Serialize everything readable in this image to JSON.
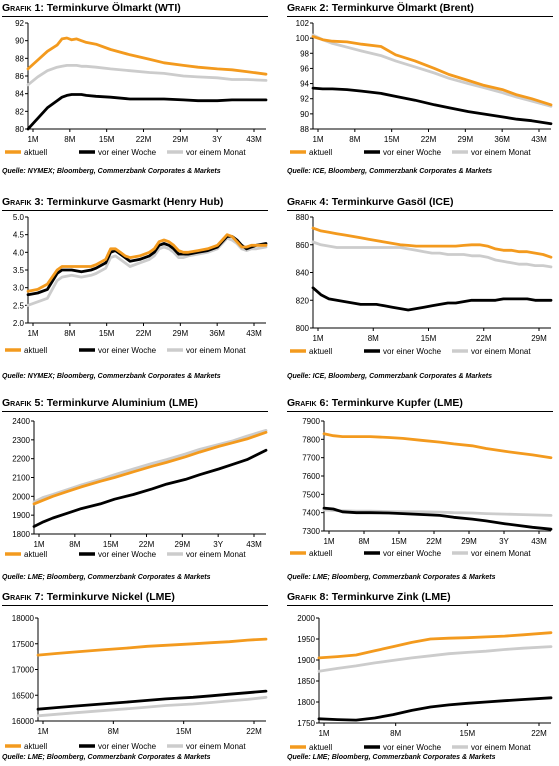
{
  "colors": {
    "aktuell": "#F39A1E",
    "woche": "#000000",
    "monat": "#CCCCCC",
    "axis": "#000000"
  },
  "charts": [
    {
      "prefix": "Grafik",
      "number": "1:",
      "title": "Terminkurve Ölmarkt (WTI)",
      "source": "Quelle: NYMEX; Bloomberg, Commerzbank Corporates & Markets"
    },
    {
      "prefix": "Grafik",
      "number": "2:",
      "title": "Terminkurve Ölmarkt (Brent)",
      "source": "Quelle: ICE, Bloomberg, Commerzbank Corporates & Markets"
    },
    {
      "prefix": "Grafik",
      "number": "3:",
      "title": "Terminkurve Gasmarkt (Henry Hub)",
      "source": "Quelle: NYMEX; Bloomberg, Commerzbank Corporates & Markets"
    },
    {
      "prefix": "Grafik",
      "number": "4:",
      "title": "Terminkurve Gasöl (ICE)",
      "source": "Quelle: ICE, Bloomberg, Commerzbank Corporates & Markets"
    },
    {
      "prefix": "Grafik",
      "number": "5:",
      "title": "Terminkurve Aluminium (LME)",
      "source": "Quelle: LME; Bloomberg, Commerzbank Corporates & Markets"
    },
    {
      "prefix": "Grafik",
      "number": "6:",
      "title": "Terminkurve Kupfer (LME)",
      "source": "Quelle: LME; Bloomberg, Commerzbank Corporates & Markets"
    },
    {
      "prefix": "Grafik",
      "number": "7:",
      "title": "Terminkurve Nickel (LME)",
      "source": "Quelle: LME; Bloomberg, Commerzbank Corporates & Markets"
    },
    {
      "prefix": "Grafik",
      "number": "8:",
      "title": "Terminkurve Zink (LME)",
      "source": "Quelle: LME; Bloomberg, Commerzbank Corporates & Markets"
    }
  ],
  "chart_data": [
    {
      "type": "line",
      "title": "Terminkurve Ölmarkt (WTI)",
      "ylim": [
        80,
        92
      ],
      "yticks": [
        80,
        82,
        84,
        86,
        88,
        90,
        92
      ],
      "categories": [
        "1M",
        "8M",
        "15M",
        "22M",
        "29M",
        "3Y",
        "43M"
      ],
      "xlim": [
        1,
        50
      ],
      "x": [
        1,
        3,
        5,
        7,
        8,
        9,
        10,
        11,
        12,
        13,
        15,
        18,
        22,
        26,
        29,
        33,
        36,
        40,
        43,
        46,
        50
      ],
      "legend": [
        "aktuell",
        "vor einer Woche",
        "vor einem Monat"
      ],
      "series": [
        {
          "name": "aktuell",
          "values": [
            86.8,
            87.8,
            88.8,
            89.5,
            90.2,
            90.3,
            90.1,
            90.2,
            90.0,
            89.8,
            89.6,
            89.0,
            88.4,
            87.9,
            87.5,
            87.2,
            87.0,
            86.8,
            86.7,
            86.5,
            86.2
          ]
        },
        {
          "name": "vor einer Woche",
          "values": [
            80.0,
            81.2,
            82.4,
            83.2,
            83.6,
            83.8,
            83.9,
            83.9,
            83.9,
            83.8,
            83.7,
            83.6,
            83.4,
            83.4,
            83.4,
            83.3,
            83.2,
            83.2,
            83.3,
            83.3,
            83.3
          ]
        },
        {
          "name": "vor einem Monat",
          "values": [
            85.0,
            85.9,
            86.6,
            87.0,
            87.1,
            87.2,
            87.2,
            87.2,
            87.1,
            87.1,
            87.0,
            86.8,
            86.6,
            86.4,
            86.3,
            86.0,
            85.9,
            85.8,
            85.6,
            85.6,
            85.5
          ]
        }
      ]
    },
    {
      "type": "line",
      "title": "Terminkurve Ölmarkt (Brent)",
      "ylim": [
        88,
        102
      ],
      "yticks": [
        88,
        90,
        92,
        94,
        96,
        98,
        100,
        102
      ],
      "categories": [
        "1M",
        "8M",
        "15M",
        "22M",
        "29M",
        "36M",
        "43M"
      ],
      "xlim": [
        1,
        50
      ],
      "x": [
        1,
        3,
        5,
        8,
        11,
        15,
        18,
        22,
        26,
        29,
        33,
        36,
        40,
        43,
        46,
        50
      ],
      "legend": [
        "aktuell",
        "vor einer Woche",
        "vor einem Monat"
      ],
      "series": [
        {
          "name": "aktuell",
          "values": [
            100.2,
            99.8,
            99.6,
            99.5,
            99.2,
            98.9,
            97.8,
            97.0,
            96.0,
            95.2,
            94.4,
            93.8,
            93.2,
            92.5,
            92.0,
            91.2
          ]
        },
        {
          "name": "vor einer Woche",
          "values": [
            93.4,
            93.3,
            93.3,
            93.2,
            93.0,
            92.7,
            92.3,
            91.8,
            91.2,
            90.8,
            90.3,
            90.0,
            89.6,
            89.3,
            89.1,
            88.7
          ]
        },
        {
          "name": "vor einem Monat",
          "values": [
            100.4,
            99.8,
            99.3,
            98.8,
            98.3,
            97.7,
            97.0,
            96.2,
            95.4,
            94.7,
            94.0,
            93.5,
            92.8,
            92.2,
            91.7,
            91.0
          ]
        }
      ]
    },
    {
      "type": "line",
      "title": "Terminkurve Gasmarkt (Henry Hub)",
      "ylim": [
        2.0,
        5.0
      ],
      "yticks": [
        2.0,
        2.5,
        3.0,
        3.5,
        4.0,
        4.5,
        5.0
      ],
      "categories": [
        "1M",
        "8M",
        "15M",
        "22M",
        "29M",
        "36M",
        "43M"
      ],
      "xlim": [
        1,
        50
      ],
      "x": [
        1,
        3,
        5,
        7,
        8,
        10,
        12,
        14,
        15,
        17,
        18,
        19,
        20,
        21,
        22,
        24,
        26,
        27,
        28,
        29,
        30,
        31,
        32,
        33,
        34,
        36,
        38,
        40,
        41,
        42,
        43,
        44,
        45,
        46,
        47,
        48,
        50
      ],
      "legend": [
        "aktuell",
        "vor einer Woche",
        "vor einem Monat"
      ],
      "series": [
        {
          "name": "aktuell",
          "values": [
            2.9,
            2.95,
            3.1,
            3.5,
            3.6,
            3.6,
            3.6,
            3.6,
            3.65,
            3.8,
            4.1,
            4.1,
            4.0,
            3.9,
            3.85,
            3.9,
            4.0,
            4.1,
            4.3,
            4.35,
            4.3,
            4.2,
            4.05,
            4.0,
            4.0,
            4.05,
            4.1,
            4.2,
            4.35,
            4.5,
            4.45,
            4.3,
            4.15,
            4.15,
            4.2,
            4.2,
            4.2
          ]
        },
        {
          "name": "vor einer Woche",
          "values": [
            2.8,
            2.85,
            2.95,
            3.4,
            3.5,
            3.5,
            3.45,
            3.5,
            3.55,
            3.7,
            4.0,
            4.05,
            3.95,
            3.85,
            3.75,
            3.8,
            3.9,
            4.0,
            4.2,
            4.25,
            4.2,
            4.1,
            3.95,
            3.95,
            3.95,
            4.0,
            4.05,
            4.15,
            4.3,
            4.45,
            4.45,
            4.35,
            4.2,
            4.1,
            4.15,
            4.2,
            4.25
          ]
        },
        {
          "name": "vor einem Monat",
          "values": [
            2.5,
            2.6,
            2.7,
            3.2,
            3.3,
            3.35,
            3.3,
            3.35,
            3.4,
            3.55,
            3.85,
            3.9,
            3.8,
            3.7,
            3.6,
            3.7,
            3.8,
            3.9,
            4.1,
            4.15,
            4.1,
            4.0,
            3.85,
            3.85,
            3.9,
            3.95,
            4.0,
            4.1,
            4.25,
            4.4,
            4.35,
            4.25,
            4.1,
            4.05,
            4.1,
            4.1,
            4.15
          ]
        }
      ]
    },
    {
      "type": "line",
      "title": "Terminkurve Gasöl (ICE)",
      "ylim": [
        800,
        880
      ],
      "yticks": [
        800,
        820,
        840,
        860,
        880
      ],
      "categories": [
        "1M",
        "8M",
        "15M",
        "22M",
        "29M"
      ],
      "xlim": [
        1,
        31
      ],
      "x": [
        1,
        2,
        3,
        4,
        5,
        6,
        7,
        8,
        9,
        10,
        11,
        12,
        13,
        14,
        15,
        16,
        17,
        18,
        19,
        20,
        21,
        22,
        23,
        24,
        25,
        26,
        27,
        28,
        29,
        30,
        31
      ],
      "legend": [
        "aktuell",
        "vor einer Woche",
        "vor einem Monat"
      ],
      "series": [
        {
          "name": "aktuell",
          "values": [
            872,
            870,
            869,
            868,
            867,
            866,
            865,
            864,
            863,
            862,
            861,
            860,
            859.5,
            859,
            859,
            859,
            859,
            859,
            859,
            859.5,
            860,
            860,
            859,
            857,
            856,
            856,
            855,
            855,
            854,
            853,
            851
          ]
        },
        {
          "name": "vor einer Woche",
          "values": [
            829,
            824,
            821,
            820,
            819,
            818,
            817,
            817,
            817,
            816,
            815,
            814,
            813,
            814,
            815,
            816,
            817,
            818,
            818,
            819,
            820,
            820,
            820,
            820,
            821,
            821,
            821,
            821,
            820,
            820,
            820
          ]
        },
        {
          "name": "vor einem Monat",
          "values": [
            862,
            860,
            859,
            858,
            858,
            858,
            858,
            858,
            858,
            858,
            858,
            858,
            857,
            856,
            855,
            854,
            854,
            853,
            853,
            853,
            852,
            852,
            851,
            849,
            848,
            847,
            846,
            846,
            845,
            845,
            844
          ]
        }
      ]
    },
    {
      "type": "line",
      "title": "Terminkurve Aluminium (LME)",
      "ylim": [
        1800,
        2400
      ],
      "yticks": [
        1800,
        1900,
        2000,
        2100,
        2200,
        2300,
        2400
      ],
      "categories": [
        "1M",
        "8M",
        "15M",
        "22M",
        "29M",
        "3Y",
        "43M"
      ],
      "xlim": [
        1,
        50
      ],
      "x": [
        1,
        3,
        5,
        8,
        11,
        15,
        18,
        22,
        26,
        29,
        33,
        36,
        40,
        43,
        46,
        50
      ],
      "legend": [
        "aktuell",
        "vor einer Woche",
        "vor einem Monat"
      ],
      "series": [
        {
          "name": "aktuell",
          "values": [
            1960,
            1980,
            2000,
            2025,
            2050,
            2080,
            2100,
            2130,
            2160,
            2180,
            2210,
            2235,
            2265,
            2285,
            2305,
            2340
          ]
        },
        {
          "name": "vor einer Woche",
          "values": [
            1840,
            1865,
            1885,
            1910,
            1935,
            1960,
            1985,
            2010,
            2040,
            2065,
            2090,
            2115,
            2145,
            2170,
            2195,
            2245
          ]
        },
        {
          "name": "vor einem Monat",
          "values": [
            1970,
            1995,
            2010,
            2035,
            2060,
            2090,
            2115,
            2145,
            2175,
            2195,
            2225,
            2250,
            2275,
            2295,
            2320,
            2350
          ]
        }
      ]
    },
    {
      "type": "line",
      "title": "Terminkurve Kupfer (LME)",
      "ylim": [
        7300,
        7900
      ],
      "yticks": [
        7300,
        7400,
        7500,
        7600,
        7700,
        7800,
        7900
      ],
      "categories": [
        "1M",
        "8M",
        "15M",
        "22M",
        "29M",
        "3Y",
        "43M"
      ],
      "xlim": [
        1,
        50
      ],
      "x": [
        1,
        3,
        5,
        8,
        11,
        15,
        18,
        22,
        26,
        29,
        33,
        36,
        40,
        43,
        46,
        50
      ],
      "legend": [
        "aktuell",
        "vor einer Woche",
        "vor einem Monat"
      ],
      "series": [
        {
          "name": "aktuell",
          "values": [
            7830,
            7820,
            7815,
            7815,
            7815,
            7810,
            7805,
            7795,
            7785,
            7775,
            7765,
            7750,
            7735,
            7725,
            7715,
            7700
          ]
        },
        {
          "name": "vor einer Woche",
          "values": [
            7425,
            7420,
            7405,
            7400,
            7400,
            7398,
            7395,
            7390,
            7385,
            7375,
            7365,
            7355,
            7340,
            7330,
            7320,
            7310
          ]
        },
        {
          "name": "vor einem Monat",
          "values": [
            7415,
            7412,
            7410,
            7408,
            7408,
            7406,
            7405,
            7405,
            7403,
            7400,
            7398,
            7395,
            7392,
            7390,
            7388,
            7385
          ]
        }
      ]
    },
    {
      "type": "line",
      "title": "Terminkurve Nickel (LME)",
      "ylim": [
        16000,
        18000
      ],
      "yticks": [
        16000,
        16500,
        17000,
        17500,
        18000
      ],
      "categories": [
        "1M",
        "8M",
        "15M",
        "22M"
      ],
      "xlim": [
        1,
        26
      ],
      "x": [
        1,
        3,
        5,
        8,
        11,
        13,
        15,
        18,
        20,
        22,
        24,
        26
      ],
      "legend": [
        "aktuell",
        "vor einer Woche",
        "vor einem Monat"
      ],
      "series": [
        {
          "name": "aktuell",
          "values": [
            17280,
            17310,
            17340,
            17380,
            17420,
            17450,
            17470,
            17500,
            17520,
            17540,
            17570,
            17590
          ]
        },
        {
          "name": "vor einer Woche",
          "values": [
            16230,
            16260,
            16290,
            16330,
            16370,
            16400,
            16430,
            16460,
            16490,
            16520,
            16550,
            16580
          ]
        },
        {
          "name": "vor einem Monat",
          "values": [
            16100,
            16130,
            16160,
            16200,
            16240,
            16270,
            16300,
            16330,
            16360,
            16390,
            16420,
            16460
          ]
        }
      ]
    },
    {
      "type": "line",
      "title": "Terminkurve Zink (LME)",
      "ylim": [
        1750,
        2000
      ],
      "yticks": [
        1750,
        1800,
        1850,
        1900,
        1950,
        2000
      ],
      "categories": [
        "1M",
        "8M",
        "15M",
        "22M"
      ],
      "xlim": [
        1,
        26
      ],
      "x": [
        1,
        3,
        5,
        7,
        9,
        11,
        13,
        15,
        17,
        19,
        21,
        23,
        26
      ],
      "legend": [
        "aktuell",
        "vor einer Woche",
        "vor einem Monat"
      ],
      "series": [
        {
          "name": "aktuell",
          "values": [
            1905,
            1908,
            1912,
            1922,
            1932,
            1942,
            1950,
            1952,
            1953,
            1955,
            1957,
            1960,
            1965
          ]
        },
        {
          "name": "vor einer Woche",
          "values": [
            1760,
            1758,
            1757,
            1762,
            1770,
            1780,
            1788,
            1793,
            1797,
            1800,
            1803,
            1806,
            1810
          ]
        },
        {
          "name": "vor einem Monat",
          "values": [
            1873,
            1880,
            1886,
            1893,
            1899,
            1905,
            1910,
            1915,
            1918,
            1921,
            1925,
            1928,
            1932
          ]
        }
      ]
    }
  ]
}
